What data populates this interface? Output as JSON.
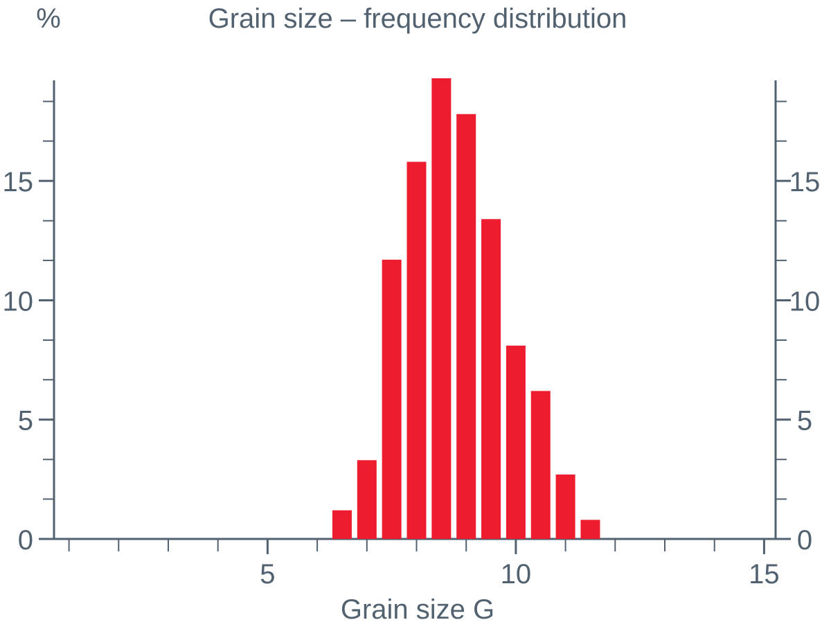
{
  "chart_data": {
    "type": "bar",
    "title": "Grain size – frequency distribution",
    "ylabel": "%",
    "xlabel": "Grain size G",
    "x": [
      6.5,
      7,
      7.5,
      8,
      8.5,
      9,
      9.5,
      10,
      10.5,
      11,
      11.5
    ],
    "values": [
      1.2,
      3.3,
      11.7,
      15.8,
      19.3,
      17.8,
      13.4,
      8.1,
      6.2,
      2.7,
      0.8
    ],
    "xlim": [
      1,
      15
    ],
    "ylim": [
      0,
      19.3
    ],
    "xticks_major": [
      5,
      10,
      15
    ],
    "xticks_minor": [
      1,
      2,
      3,
      4,
      6,
      7,
      8,
      9,
      11,
      12,
      13,
      14
    ],
    "yticks_major": [
      0,
      5,
      10,
      15
    ],
    "yticks_minor": [
      1.67,
      3.33,
      6.67,
      8.33,
      11.67,
      13.33,
      16.67,
      18.33
    ],
    "xtick_labels": [
      "5",
      "10",
      "15"
    ],
    "ytick_labels": [
      "0",
      "5",
      "10",
      "15"
    ],
    "grid": false,
    "legend": "none",
    "colors": {
      "bar": "#ed1c2e",
      "axis": "#52616f",
      "text": "#52616f",
      "background": "#ffffff"
    }
  }
}
